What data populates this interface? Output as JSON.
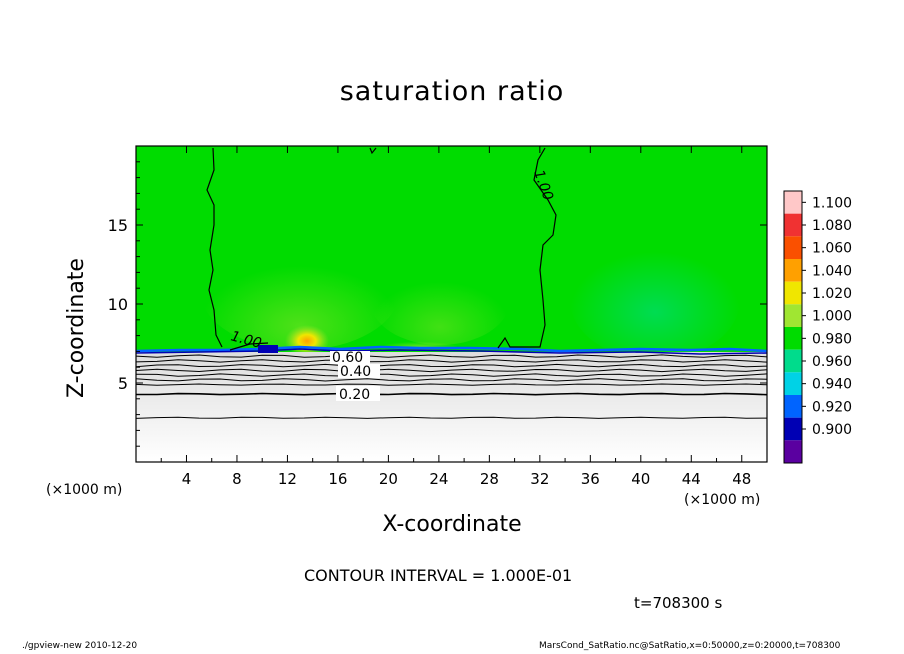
{
  "chart_data": {
    "type": "heatmap",
    "title": "saturation ratio",
    "xlabel": "X-coordinate",
    "ylabel": "Z-coordinate",
    "x_unit_label": "(×1000 m)",
    "xlim": [
      0,
      50
    ],
    "ylim": [
      0,
      20
    ],
    "x_ticks": [
      "4",
      "8",
      "12",
      "16",
      "20",
      "24",
      "28",
      "32",
      "36",
      "40",
      "44",
      "48"
    ],
    "y_ticks": [
      "5",
      "10",
      "15"
    ],
    "colorbar": {
      "levels": [
        "1.100",
        "1.080",
        "1.060",
        "1.040",
        "1.020",
        "1.000",
        "0.980",
        "0.960",
        "0.940",
        "0.920",
        "0.900"
      ],
      "colors": [
        "#ffc8c8",
        "#f03232",
        "#fa5000",
        "#ffa000",
        "#f0e600",
        "#a0e632",
        "#00dc00",
        "#00dc8c",
        "#00d2e6",
        "#0064ff",
        "#0000b4",
        "#5a00a0"
      ]
    },
    "contour_labels": [
      "1.00",
      "1.00",
      "0.60",
      "0.40",
      "0.20"
    ],
    "contour_levels": [
      1.0,
      0.9,
      0.8,
      0.7,
      0.6,
      0.5,
      0.4,
      0.3,
      0.2,
      0.1
    ],
    "contour_interval": 0.1
  },
  "contour_interval_text": "CONTOUR INTERVAL = 1.000E-01",
  "time_label": "t=708300 s",
  "footer_left": "./gpview-new  2010-12-20",
  "footer_right": "MarsCond_SatRatio.nc@SatRatio,x=0:50000,z=0:20000,t=708300"
}
